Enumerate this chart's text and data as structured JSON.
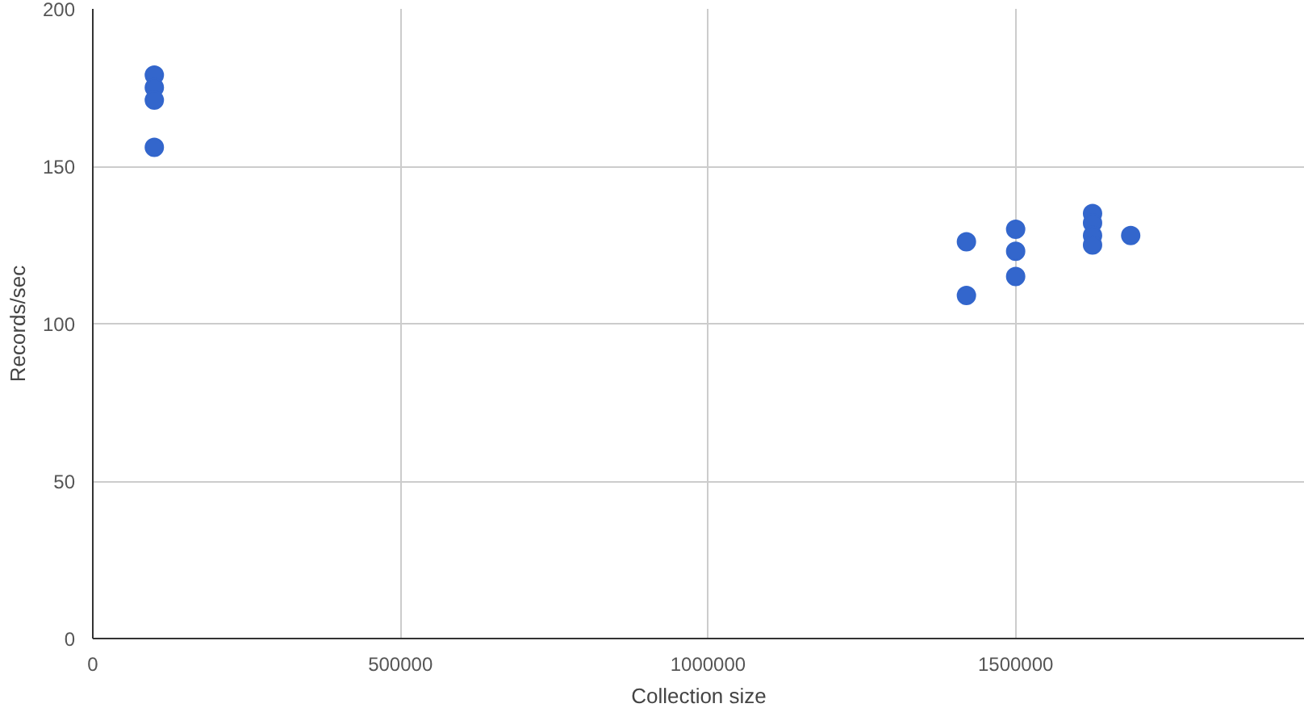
{
  "chart_data": {
    "type": "scatter",
    "xlabel": "Collection size",
    "ylabel": "Records/sec",
    "x": [
      100000,
      100000,
      100000,
      100000,
      1420000,
      1420000,
      1500000,
      1500000,
      1500000,
      1625000,
      1625000,
      1625000,
      1625000,
      1687000
    ],
    "series": [
      {
        "color": "#3366cc",
        "values": [
          179,
          175,
          171,
          156,
          126,
          109,
          130,
          123,
          115,
          135,
          132,
          128,
          125,
          128
        ]
      }
    ],
    "xlim": [
      0,
      1970000
    ],
    "xticks": [
      0,
      500000,
      1000000,
      1500000
    ],
    "ylim": [
      0,
      200
    ],
    "yticks": [
      0,
      50,
      100,
      150,
      200
    ],
    "grid": true,
    "marker": "circle"
  }
}
